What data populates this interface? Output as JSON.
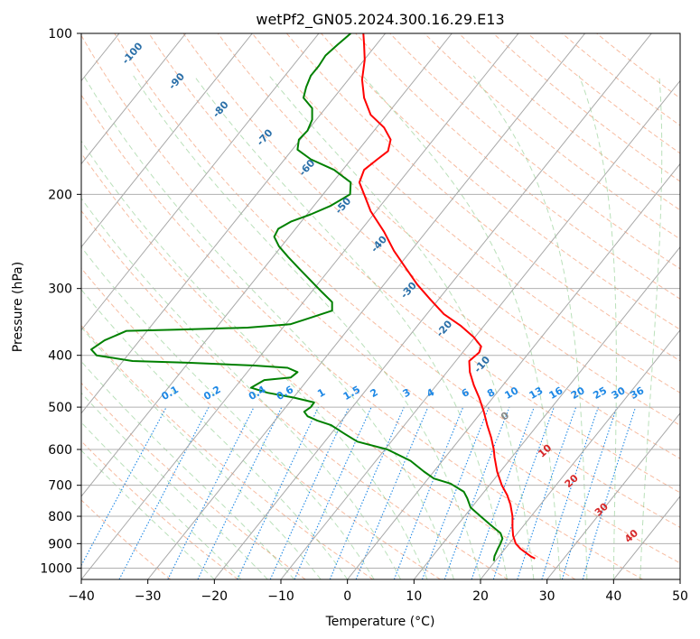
{
  "chart_data": {
    "type": "line",
    "title": "wetPf2_GN05.2024.300.16.29.E13",
    "xlabel": "Temperature (°C)",
    "ylabel": "Pressure (hPa)",
    "xlim": [
      -40,
      50
    ],
    "ylim": [
      1050,
      100
    ],
    "y_scale": "log",
    "x_ticks": [
      -40,
      -30,
      -20,
      -10,
      0,
      10,
      20,
      30,
      40,
      50
    ],
    "y_ticks": [
      100,
      200,
      300,
      400,
      500,
      600,
      700,
      800,
      900,
      1000
    ],
    "grid": true,
    "series": [
      {
        "color": "#ff0000",
        "kind": "temperature",
        "points": [
          [
            28.2,
            960
          ],
          [
            27.5,
            950
          ],
          [
            26,
            920
          ],
          [
            25.3,
            900
          ],
          [
            24.9,
            870
          ],
          [
            24.8,
            840
          ],
          [
            24.8,
            800
          ],
          [
            24.5,
            760
          ],
          [
            24,
            730
          ],
          [
            23.2,
            700
          ],
          [
            22.5,
            660
          ],
          [
            22.1,
            620
          ],
          [
            22,
            600
          ],
          [
            21.6,
            570
          ],
          [
            21,
            540
          ],
          [
            20.5,
            510
          ],
          [
            19.8,
            480
          ],
          [
            19,
            455
          ],
          [
            18.4,
            430
          ],
          [
            18.3,
            410
          ],
          [
            19.8,
            395
          ],
          [
            20.1,
            385
          ],
          [
            19,
            370
          ],
          [
            17,
            352
          ],
          [
            14.5,
            335
          ],
          [
            12.5,
            315
          ],
          [
            10.5,
            295
          ],
          [
            8.8,
            275
          ],
          [
            7,
            255
          ],
          [
            5.5,
            235
          ],
          [
            3.5,
            215
          ],
          [
            2.5,
            200
          ],
          [
            1.8,
            190
          ],
          [
            2.5,
            180
          ],
          [
            4.5,
            172
          ],
          [
            6.1,
            166
          ],
          [
            6.5,
            158
          ],
          [
            5.5,
            150
          ],
          [
            3.5,
            142
          ],
          [
            2.5,
            132
          ],
          [
            2.2,
            122
          ],
          [
            2.6,
            112
          ],
          [
            2.5,
            105
          ],
          [
            2.4,
            100
          ]
        ]
      },
      {
        "color": "#008000",
        "kind": "dewpoint",
        "points": [
          [
            22,
            970
          ],
          [
            22.1,
            950
          ],
          [
            22.6,
            920
          ],
          [
            23,
            900
          ],
          [
            23.3,
            880
          ],
          [
            23,
            860
          ],
          [
            21.5,
            830
          ],
          [
            20,
            800
          ],
          [
            18.5,
            770
          ],
          [
            18,
            740
          ],
          [
            17.5,
            720
          ],
          [
            15.5,
            695
          ],
          [
            13,
            680
          ],
          [
            11.5,
            660
          ],
          [
            9.5,
            630
          ],
          [
            6,
            600
          ],
          [
            1.5,
            580
          ],
          [
            -0.5,
            560
          ],
          [
            -2.5,
            540
          ],
          [
            -4.5,
            530
          ],
          [
            -6,
            520
          ],
          [
            -6.5,
            510
          ],
          [
            -5.5,
            500
          ],
          [
            -5,
            490
          ],
          [
            -8,
            480
          ],
          [
            -12,
            470
          ],
          [
            -14.5,
            460
          ],
          [
            -12.5,
            445
          ],
          [
            -8.5,
            440
          ],
          [
            -7.5,
            430
          ],
          [
            -9,
            422
          ],
          [
            -14,
            418
          ],
          [
            -24,
            413
          ],
          [
            -32.3,
            410
          ],
          [
            -37.7,
            400
          ],
          [
            -38.5,
            390
          ],
          [
            -36.5,
            375
          ],
          [
            -33.2,
            360
          ],
          [
            -25,
            358
          ],
          [
            -15,
            355
          ],
          [
            -8.6,
            350
          ],
          [
            -5.5,
            340
          ],
          [
            -2.3,
            330
          ],
          [
            -2.3,
            318
          ],
          [
            -3.8,
            305
          ],
          [
            -5.5,
            290
          ],
          [
            -7.3,
            275
          ],
          [
            -8.9,
            262
          ],
          [
            -10.3,
            250
          ],
          [
            -11,
            240
          ],
          [
            -10.4,
            232
          ],
          [
            -8.5,
            225
          ],
          [
            -5.5,
            218
          ],
          [
            -2.5,
            210
          ],
          [
            0.4,
            200
          ],
          [
            0.5,
            190
          ],
          [
            -2,
            180
          ],
          [
            -5.5,
            172
          ],
          [
            -7.5,
            165
          ],
          [
            -7.3,
            158
          ],
          [
            -6,
            152
          ],
          [
            -5.3,
            145
          ],
          [
            -5.3,
            138
          ],
          [
            -6.6,
            132
          ],
          [
            -6.2,
            126
          ],
          [
            -5.5,
            120
          ],
          [
            -4.3,
            115
          ],
          [
            -3.3,
            110
          ],
          [
            -1.5,
            105
          ],
          [
            0.5,
            100
          ]
        ]
      }
    ],
    "mixing_ratio_labels": [
      "0.1",
      "0.2",
      "0.4",
      "0.6",
      "1",
      "1.5",
      "2",
      "3",
      "4",
      "6",
      "8",
      "10",
      "13",
      "16",
      "20",
      "25",
      "30",
      "36"
    ],
    "dry_adiabat_labels": [
      "-100",
      "-90",
      "-80",
      "-70",
      "-60",
      "-50",
      "-40",
      "-30",
      "-20",
      "-10"
    ],
    "moist_adiabat_labels": [
      "0",
      "10",
      "20",
      "30",
      "40"
    ]
  }
}
